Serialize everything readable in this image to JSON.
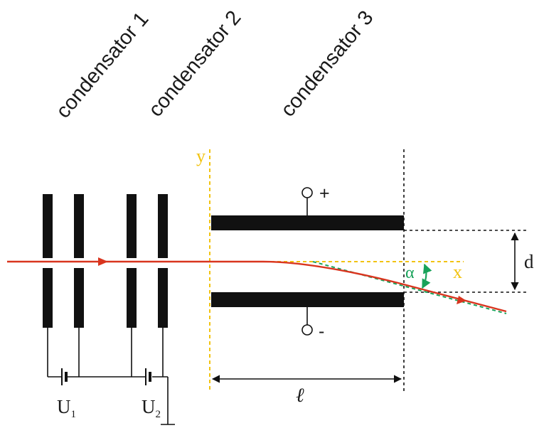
{
  "labels": {
    "condensator_1": "condensator 1",
    "condensator_2": "condensator 2",
    "condensator_3": "condensator 3",
    "axis_y": "y",
    "axis_x": "x",
    "plus": "+",
    "minus": "-",
    "distance": "d",
    "angle": "α",
    "length": "ℓ",
    "voltage_1_letter": "U",
    "voltage_1_sub": "1",
    "voltage_2_letter": "U",
    "voltage_2_sub": "2"
  },
  "colors": {
    "beam": "#d9351f",
    "axes": "#f2c311",
    "angle": "#19a25a",
    "plates": "#111111",
    "text": "#1a1a1a"
  }
}
